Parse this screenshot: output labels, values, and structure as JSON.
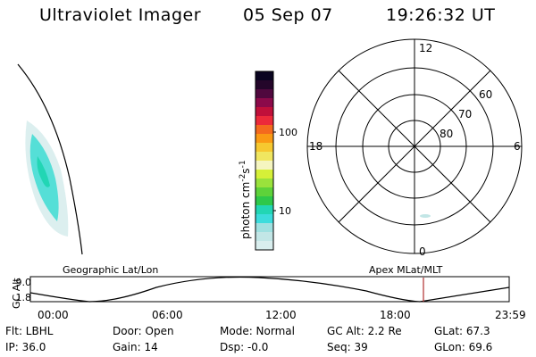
{
  "header": {
    "title": "Ultraviolet Imager",
    "date": "05 Sep 07",
    "time": "19:26:32 UT"
  },
  "colorbar": {
    "label": "photon cm",
    "exp1": "-2",
    "s": "s",
    "exp2": "-1",
    "ticks": [
      {
        "label": "100",
        "value": 100
      },
      {
        "label": "10",
        "value": 10
      }
    ],
    "colors": [
      "#d9eeee",
      "#c2e6e6",
      "#9fe0e0",
      "#3cdcdc",
      "#22d6b4",
      "#2ec84a",
      "#5ed23a",
      "#9ae23c",
      "#d6f038",
      "#f5f5c0",
      "#f0e660",
      "#f6c830",
      "#fa9a14",
      "#f46a1e",
      "#ec2a3a",
      "#c0103a",
      "#8c0a4a",
      "#50083e",
      "#24062a",
      "#0a0420"
    ]
  },
  "polar": {
    "labels": {
      "top": "12",
      "left": "18",
      "right": "6",
      "bottom": "0",
      "r60": "60",
      "r70": "70",
      "r80": "80"
    }
  },
  "orbit": {
    "left_label": "Geographic Lat/Lon",
    "right_label": "Apex MLat/MLT",
    "ylabel": "GC Alt",
    "ytick_top": "9.0",
    "ytick_bottom": "1.8",
    "xticks": [
      "00:00",
      "06:00",
      "12:00",
      "18:00",
      "23:59"
    ]
  },
  "info": {
    "flt": "Flt: LBHL",
    "ip": "IP: 36.0",
    "door": "Door: Open",
    "gain": "Gain: 14",
    "mode": "Mode: Normal",
    "dsp": "Dsp:    -0.0",
    "gcalt": "GC Alt: 2.2 Re",
    "seq": "Seq: 39",
    "glat": "GLat:  67.3",
    "glon": "GLon:  69.6"
  },
  "colors": {
    "aurora_main": "#3ddcd2",
    "aurora_faint": "#dcefef",
    "marker": "#b03030"
  }
}
